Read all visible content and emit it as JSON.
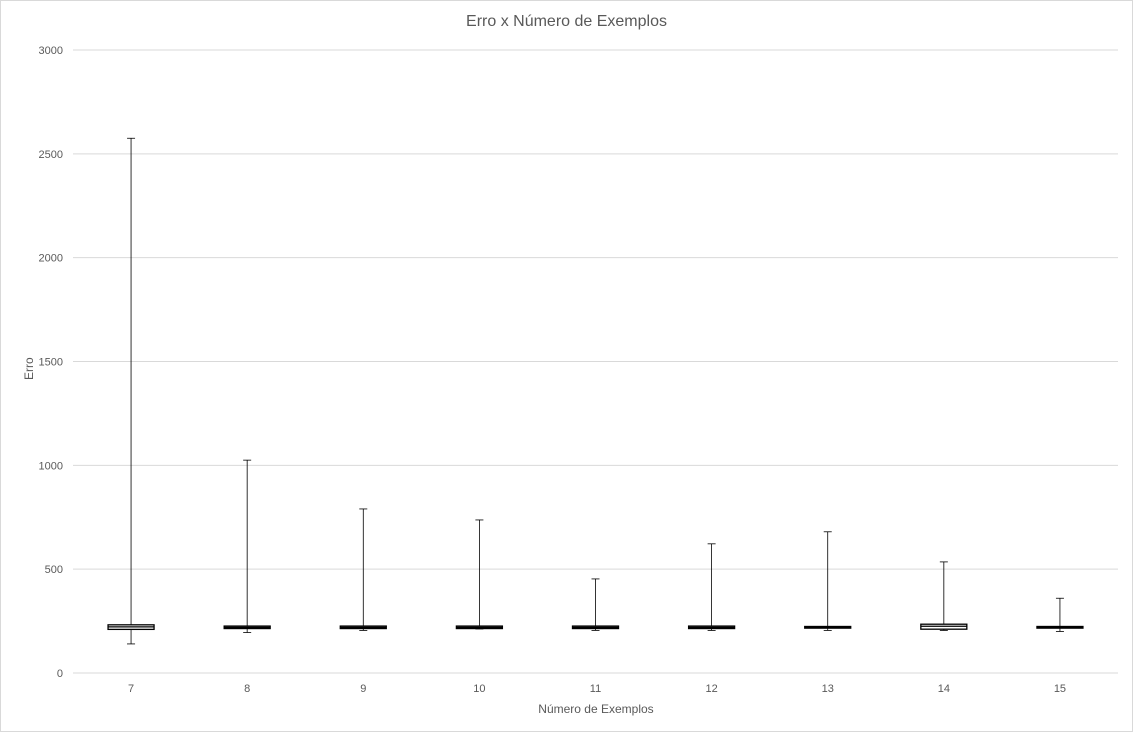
{
  "chart_data": {
    "type": "boxplot",
    "title": "Erro x Número de Exemplos",
    "xlabel": "Número de Exemplos",
    "ylabel": "Erro",
    "ylim": [
      0,
      3000
    ],
    "yticks": [
      0,
      500,
      1000,
      1500,
      2000,
      2500,
      3000
    ],
    "grid": true,
    "categories": [
      "7",
      "8",
      "9",
      "10",
      "11",
      "12",
      "13",
      "14",
      "15"
    ],
    "boxes": [
      {
        "category": "7",
        "min": 140,
        "q1": 210,
        "median": 222,
        "q3": 232,
        "max": 2575
      },
      {
        "category": "8",
        "min": 195,
        "q1": 214,
        "median": 220,
        "q3": 226,
        "max": 1025
      },
      {
        "category": "9",
        "min": 205,
        "q1": 214,
        "median": 220,
        "q3": 226,
        "max": 790
      },
      {
        "category": "10",
        "min": 212,
        "q1": 214,
        "median": 220,
        "q3": 226,
        "max": 737
      },
      {
        "category": "11",
        "min": 205,
        "q1": 214,
        "median": 220,
        "q3": 226,
        "max": 453
      },
      {
        "category": "12",
        "min": 205,
        "q1": 214,
        "median": 220,
        "q3": 226,
        "max": 622
      },
      {
        "category": "13",
        "min": 205,
        "q1": 216,
        "median": 220,
        "q3": 224,
        "max": 680
      },
      {
        "category": "14",
        "min": 205,
        "q1": 211,
        "median": 225,
        "q3": 235,
        "max": 535
      },
      {
        "category": "15",
        "min": 200,
        "q1": 216,
        "median": 220,
        "q3": 224,
        "max": 360
      }
    ],
    "colors": {
      "box_stroke": "#000000",
      "grid": "#d9d9d9",
      "text": "#595959"
    }
  }
}
